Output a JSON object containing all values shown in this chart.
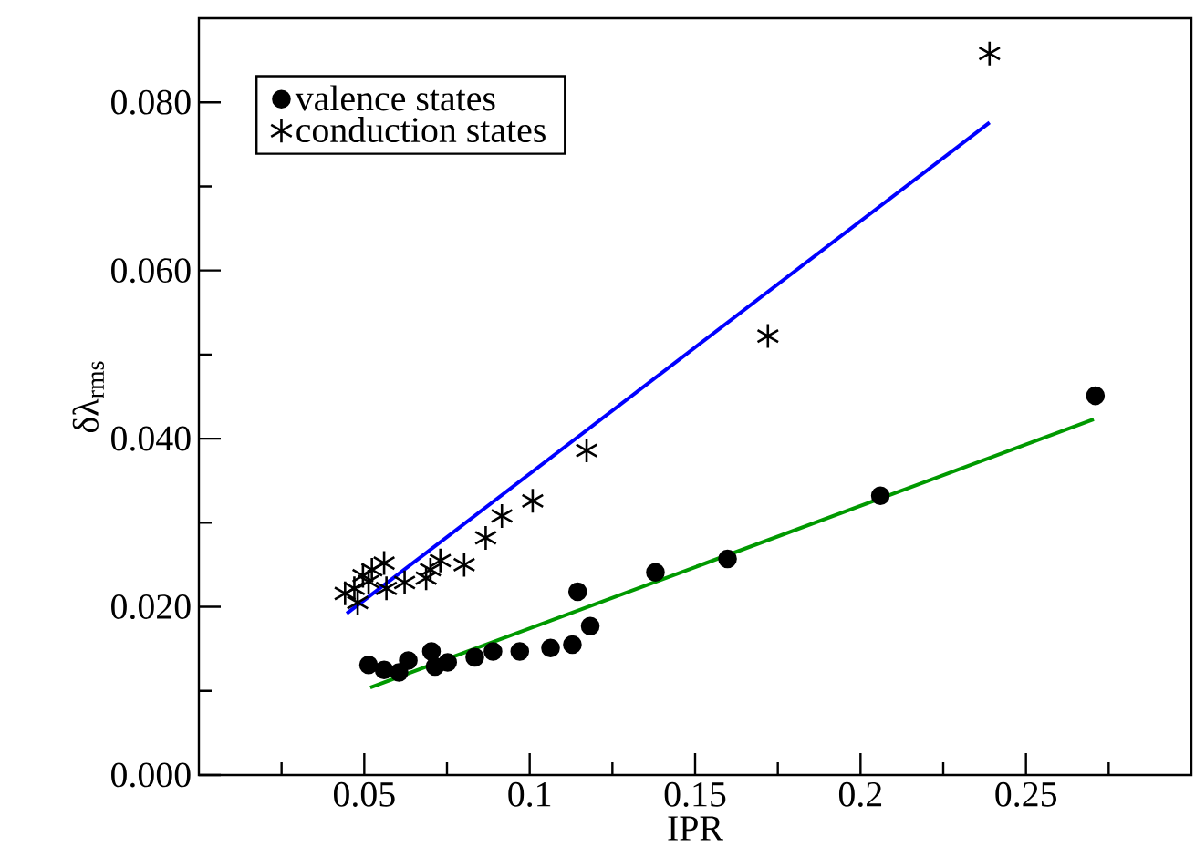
{
  "chart_data": {
    "type": "scatter",
    "xlabel": "IPR",
    "ylabel": "δλ$_{rms}$",
    "xlim": [
      0,
      0.3
    ],
    "ylim": [
      0,
      0.09
    ],
    "xticks": [
      {
        "value": 0.025,
        "label": null
      },
      0.05,
      {
        "value": 0.075,
        "label": null
      },
      0.1,
      {
        "value": 0.125,
        "label": null
      },
      0.15,
      {
        "value": 0.175,
        "label": null
      },
      0.2,
      {
        "value": 0.225,
        "label": null
      },
      0.25,
      {
        "value": 0.275,
        "label": null
      }
    ],
    "yticks": [
      {
        "value": 0,
        "label": "0.000"
      },
      {
        "value": 0.01,
        "label": null
      },
      {
        "value": 0.02,
        "label": "0.020"
      },
      {
        "value": 0.03,
        "label": null
      },
      {
        "value": 0.04,
        "label": "0.040"
      },
      {
        "value": 0.05,
        "label": null
      },
      {
        "value": 0.06,
        "label": "0.060"
      },
      {
        "value": 0.07,
        "label": null
      },
      {
        "value": 0.08,
        "label": "0.080"
      }
    ],
    "grid": false,
    "legend": "top left",
    "series": [
      {
        "name": "valence states",
        "color": "#000000",
        "marker": "circle",
        "x": [
          0.0513,
          0.056,
          0.0605,
          0.0633,
          0.0703,
          0.0714,
          0.0752,
          0.0834,
          0.0889,
          0.097,
          0.1063,
          0.1129,
          0.1145,
          0.1183,
          0.138,
          0.1598,
          0.206,
          0.271
        ],
        "values": [
          0.0131,
          0.0125,
          0.0122,
          0.0136,
          0.0147,
          0.0129,
          0.0134,
          0.014,
          0.0147,
          0.0147,
          0.0151,
          0.0155,
          0.0218,
          0.0177,
          0.0241,
          0.0257,
          0.0332,
          0.0451
        ]
      },
      {
        "name": "conduction states",
        "color": "#000000",
        "marker": "cross",
        "x": [
          0.0442,
          0.047,
          0.048,
          0.0496,
          0.0513,
          0.0523,
          0.056,
          0.0567,
          0.0622,
          0.0687,
          0.07,
          0.073,
          0.0802,
          0.0867,
          0.0916,
          0.1009,
          0.1172,
          0.172,
          0.239
        ],
        "values": [
          0.0216,
          0.0222,
          0.0205,
          0.0237,
          0.023,
          0.0244,
          0.0252,
          0.0222,
          0.0229,
          0.0234,
          0.0244,
          0.0255,
          0.025,
          0.0282,
          0.0308,
          0.0326,
          0.0386,
          0.0522,
          0.0858
        ]
      },
      {
        "type": "line",
        "color": "#0000ff",
        "x": [
          0.0447,
          0.239
        ],
        "values": [
          0.0192,
          0.0776
        ]
      },
      {
        "type": "line",
        "color": "#009900",
        "x": [
          0.0518,
          0.2705
        ],
        "values": [
          0.0104,
          0.0423
        ]
      }
    ]
  }
}
